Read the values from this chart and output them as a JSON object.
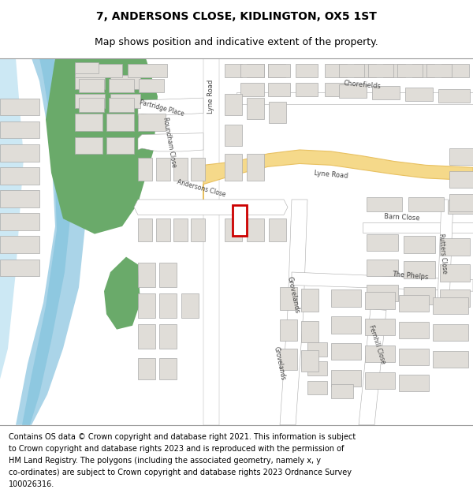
{
  "title_line1": "7, ANDERSONS CLOSE, KIDLINGTON, OX5 1ST",
  "title_line2": "Map shows position and indicative extent of the property.",
  "footer_text": "Contains OS data © Crown copyright and database right 2021. This information is subject to Crown copyright and database rights 2023 and is reproduced with the permission of HM Land Registry. The polygons (including the associated geometry, namely x, y co-ordinates) are subject to Crown copyright and database rights 2023 Ordnance Survey 100026316.",
  "map_bg": "#f7f7f5",
  "road_line_color": "#aaaaaa",
  "road_fill_color": "#ffffff",
  "yellow_road_color": "#f5d98a",
  "yellow_road_edge": "#e8c060",
  "building_color": "#e0ddd8",
  "building_edge_color": "#aaaaaa",
  "water_color": "#aad4e8",
  "water_line_color": "#7ab8d4",
  "green_color": "#6aaa6a",
  "highlight_color": "#cc0000",
  "title_fontsize": 10,
  "subtitle_fontsize": 9,
  "footer_fontsize": 7,
  "label_fontsize": 6,
  "label_color": "#444444"
}
